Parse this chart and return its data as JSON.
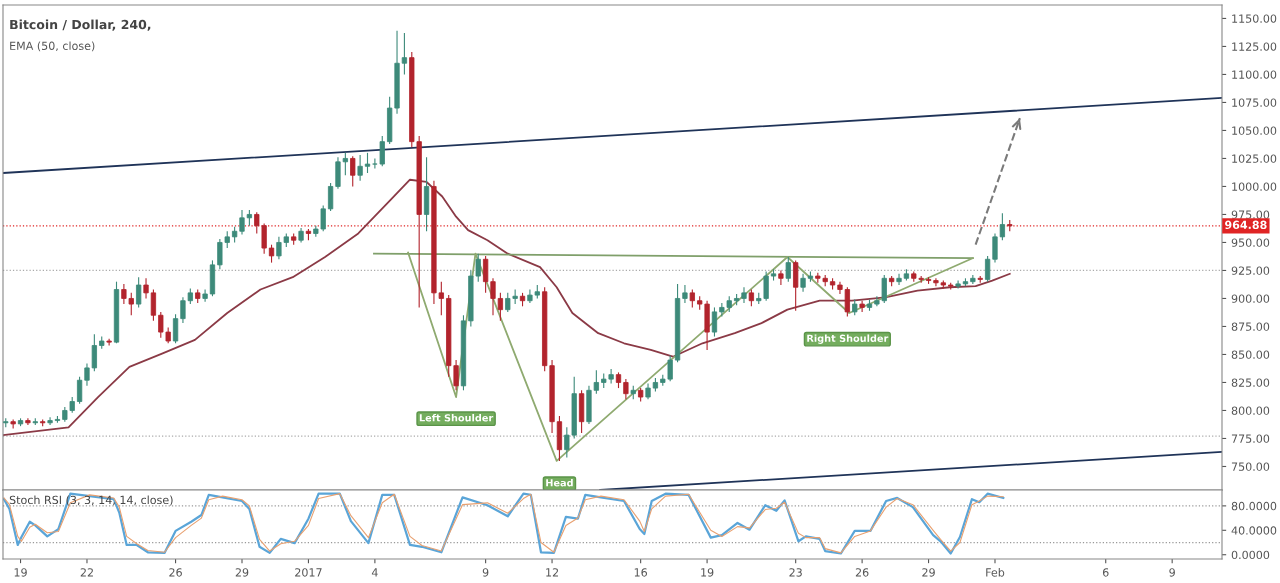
{
  "chart_data": [
    {
      "type": "candlestick",
      "title": "Bitcoin / Dollar, 240,",
      "subtitle": "EMA (50, close)",
      "x": [
        "2016-12-18T08:00",
        "2016-12-18T16:00",
        "2016-12-19T00:00",
        "2016-12-19T08:00",
        "2016-12-19T16:00",
        "2016-12-20T00:00",
        "2016-12-20T08:00",
        "2016-12-20T16:00",
        "2016-12-21T00:00",
        "2016-12-21T08:00",
        "2016-12-21T16:00",
        "2016-12-22T00:00",
        "2016-12-22T08:00",
        "2016-12-22T16:00",
        "2016-12-23T00:00",
        "2016-12-23T08:00",
        "2016-12-23T16:00",
        "2016-12-24T00:00",
        "2016-12-24T08:00",
        "2016-12-24T16:00",
        "2016-12-25T00:00",
        "2016-12-25T08:00",
        "2016-12-25T16:00",
        "2016-12-26T00:00",
        "2016-12-26T08:00",
        "2016-12-26T16:00",
        "2016-12-27T00:00",
        "2016-12-27T08:00",
        "2016-12-27T16:00",
        "2016-12-28T00:00",
        "2016-12-28T08:00",
        "2016-12-28T16:00",
        "2016-12-29T00:00",
        "2016-12-29T08:00",
        "2016-12-29T16:00",
        "2016-12-30T00:00",
        "2016-12-30T08:00",
        "2016-12-30T16:00",
        "2016-12-31T00:00",
        "2016-12-31T08:00",
        "2016-12-31T16:00",
        "2017-01-01T00:00",
        "2017-01-01T08:00",
        "2017-01-01T16:00",
        "2017-01-02T00:00",
        "2017-01-02T08:00",
        "2017-01-02T16:00",
        "2017-01-03T00:00",
        "2017-01-03T08:00",
        "2017-01-03T16:00",
        "2017-01-04T00:00",
        "2017-01-04T08:00",
        "2017-01-04T16:00",
        "2017-01-05T00:00",
        "2017-01-05T08:00",
        "2017-01-05T16:00",
        "2017-01-06T00:00",
        "2017-01-06T08:00",
        "2017-01-06T16:00",
        "2017-01-07T00:00",
        "2017-01-07T08:00",
        "2017-01-07T16:00",
        "2017-01-08T00:00",
        "2017-01-08T08:00",
        "2017-01-08T16:00",
        "2017-01-09T00:00",
        "2017-01-09T08:00",
        "2017-01-09T16:00",
        "2017-01-10T00:00",
        "2017-01-10T08:00",
        "2017-01-10T16:00",
        "2017-01-11T00:00",
        "2017-01-11T08:00",
        "2017-01-11T16:00",
        "2017-01-12T00:00",
        "2017-01-12T08:00",
        "2017-01-12T16:00",
        "2017-01-13T00:00",
        "2017-01-13T08:00",
        "2017-01-13T16:00",
        "2017-01-14T00:00",
        "2017-01-14T08:00",
        "2017-01-14T16:00",
        "2017-01-15T00:00",
        "2017-01-15T08:00",
        "2017-01-15T16:00",
        "2017-01-16T00:00",
        "2017-01-16T08:00",
        "2017-01-16T16:00",
        "2017-01-17T00:00",
        "2017-01-17T08:00",
        "2017-01-17T16:00",
        "2017-01-18T00:00",
        "2017-01-18T08:00",
        "2017-01-18T16:00",
        "2017-01-19T00:00",
        "2017-01-19T08:00",
        "2017-01-19T16:00",
        "2017-01-20T00:00",
        "2017-01-20T08:00",
        "2017-01-20T16:00",
        "2017-01-21T00:00",
        "2017-01-21T08:00",
        "2017-01-21T16:00",
        "2017-01-22T00:00",
        "2017-01-22T08:00",
        "2017-01-22T16:00",
        "2017-01-23T00:00",
        "2017-01-23T08:00",
        "2017-01-23T16:00",
        "2017-01-24T00:00",
        "2017-01-24T08:00",
        "2017-01-24T16:00",
        "2017-01-25T00:00",
        "2017-01-25T08:00",
        "2017-01-25T16:00",
        "2017-01-26T00:00",
        "2017-01-26T08:00",
        "2017-01-26T16:00",
        "2017-01-27T00:00",
        "2017-01-27T08:00",
        "2017-01-27T16:00",
        "2017-01-28T00:00",
        "2017-01-28T08:00",
        "2017-01-28T16:00",
        "2017-01-29T00:00",
        "2017-01-29T08:00",
        "2017-01-29T16:00",
        "2017-01-30T00:00",
        "2017-01-30T08:00",
        "2017-01-30T16:00",
        "2017-01-31T00:00",
        "2017-01-31T08:00",
        "2017-01-31T16:00",
        "2017-02-01T00:00",
        "2017-02-01T08:00",
        "2017-02-01T16:00"
      ],
      "ohlc": [
        [
          789,
          793,
          785,
          790
        ],
        [
          790,
          792,
          784,
          788
        ],
        [
          788,
          793,
          786,
          791
        ],
        [
          791,
          793,
          787,
          789
        ],
        [
          789,
          793,
          787,
          790
        ],
        [
          790,
          792,
          786,
          789
        ],
        [
          789,
          794,
          787,
          791
        ],
        [
          791,
          795,
          789,
          792
        ],
        [
          792,
          803,
          790,
          800
        ],
        [
          800,
          812,
          798,
          808
        ],
        [
          808,
          830,
          806,
          827
        ],
        [
          827,
          842,
          822,
          838
        ],
        [
          838,
          868,
          835,
          858
        ],
        [
          858,
          866,
          855,
          862
        ],
        [
          862,
          864,
          858,
          861
        ],
        [
          861,
          915,
          860,
          908
        ],
        [
          908,
          913,
          895,
          900
        ],
        [
          900,
          905,
          885,
          895
        ],
        [
          895,
          919,
          892,
          912
        ],
        [
          912,
          918,
          900,
          905
        ],
        [
          905,
          908,
          880,
          885
        ],
        [
          885,
          888,
          865,
          870
        ],
        [
          870,
          874,
          860,
          862
        ],
        [
          862,
          886,
          860,
          882
        ],
        [
          882,
          901,
          878,
          898
        ],
        [
          898,
          909,
          895,
          905
        ],
        [
          905,
          908,
          896,
          900
        ],
        [
          900,
          908,
          897,
          904
        ],
        [
          904,
          934,
          902,
          930
        ],
        [
          930,
          953,
          926,
          950
        ],
        [
          950,
          960,
          945,
          955
        ],
        [
          955,
          964,
          950,
          960
        ],
        [
          960,
          979,
          957,
          972
        ],
        [
          972,
          979,
          965,
          975
        ],
        [
          975,
          977,
          958,
          965
        ],
        [
          965,
          967,
          940,
          945
        ],
        [
          945,
          948,
          932,
          938
        ],
        [
          938,
          955,
          935,
          950
        ],
        [
          950,
          958,
          946,
          955
        ],
        [
          955,
          958,
          948,
          952
        ],
        [
          952,
          963,
          950,
          960
        ],
        [
          960,
          962,
          952,
          958
        ],
        [
          958,
          965,
          955,
          962
        ],
        [
          962,
          983,
          960,
          980
        ],
        [
          980,
          1003,
          978,
          1000
        ],
        [
          1000,
          1026,
          998,
          1022
        ],
        [
          1022,
          1030,
          1010,
          1025
        ],
        [
          1025,
          1027,
          1000,
          1010
        ],
        [
          1010,
          1028,
          1005,
          1018
        ],
        [
          1018,
          1030,
          1012,
          1020
        ],
        [
          1020,
          1025,
          1016,
          1020
        ],
        [
          1020,
          1045,
          1018,
          1040
        ],
        [
          1040,
          1080,
          1038,
          1070
        ],
        [
          1070,
          1139,
          1065,
          1110
        ],
        [
          1110,
          1137,
          1100,
          1115
        ],
        [
          1115,
          1120,
          1035,
          1040
        ],
        [
          1040,
          1045,
          892,
          975
        ],
        [
          975,
          1026,
          960,
          1000
        ],
        [
          1000,
          1005,
          895,
          905
        ],
        [
          905,
          915,
          885,
          900
        ],
        [
          900,
          903,
          830,
          840
        ],
        [
          840,
          845,
          818,
          822
        ],
        [
          822,
          885,
          818,
          880
        ],
        [
          880,
          925,
          875,
          920
        ],
        [
          920,
          940,
          915,
          935
        ],
        [
          935,
          938,
          905,
          915
        ],
        [
          915,
          918,
          885,
          900
        ],
        [
          900,
          905,
          880,
          890
        ],
        [
          890,
          905,
          888,
          900
        ],
        [
          900,
          908,
          895,
          902
        ],
        [
          902,
          905,
          893,
          898
        ],
        [
          898,
          908,
          896,
          903
        ],
        [
          903,
          912,
          900,
          906
        ],
        [
          906,
          910,
          835,
          840
        ],
        [
          840,
          845,
          780,
          790
        ],
        [
          790,
          795,
          755,
          765
        ],
        [
          765,
          785,
          758,
          778
        ],
        [
          778,
          830,
          775,
          815
        ],
        [
          815,
          818,
          780,
          790
        ],
        [
          790,
          822,
          788,
          818
        ],
        [
          818,
          836,
          815,
          825
        ],
        [
          825,
          833,
          820,
          828
        ],
        [
          828,
          837,
          824,
          832
        ],
        [
          832,
          834,
          820,
          825
        ],
        [
          825,
          828,
          810,
          815
        ],
        [
          815,
          822,
          810,
          818
        ],
        [
          818,
          820,
          808,
          812
        ],
        [
          812,
          824,
          810,
          820
        ],
        [
          820,
          829,
          817,
          825
        ],
        [
          825,
          832,
          822,
          828
        ],
        [
          828,
          849,
          826,
          845
        ],
        [
          845,
          913,
          843,
          900
        ],
        [
          900,
          912,
          896,
          905
        ],
        [
          905,
          908,
          892,
          898
        ],
        [
          898,
          902,
          890,
          895
        ],
        [
          895,
          898,
          854,
          870
        ],
        [
          870,
          892,
          866,
          888
        ],
        [
          888,
          896,
          884,
          892
        ],
        [
          892,
          902,
          888,
          898
        ],
        [
          898,
          904,
          894,
          900
        ],
        [
          900,
          910,
          896,
          905
        ],
        [
          905,
          908,
          893,
          898
        ],
        [
          898,
          905,
          895,
          900
        ],
        [
          900,
          924,
          898,
          920
        ],
        [
          920,
          926,
          916,
          922
        ],
        [
          922,
          925,
          912,
          918
        ],
        [
          918,
          937,
          915,
          932
        ],
        [
          932,
          934,
          889,
          910
        ],
        [
          910,
          922,
          906,
          918
        ],
        [
          918,
          924,
          915,
          920
        ],
        [
          920,
          923,
          914,
          918
        ],
        [
          918,
          921,
          911,
          915
        ],
        [
          915,
          918,
          908,
          912
        ],
        [
          912,
          915,
          904,
          908
        ],
        [
          908,
          910,
          884,
          888
        ],
        [
          888,
          899,
          885,
          895
        ],
        [
          895,
          898,
          888,
          892
        ],
        [
          892,
          899,
          889,
          895
        ],
        [
          895,
          902,
          893,
          898
        ],
        [
          898,
          921,
          896,
          918
        ],
        [
          918,
          920,
          911,
          915
        ],
        [
          915,
          922,
          912,
          918
        ],
        [
          918,
          926,
          916,
          922
        ],
        [
          922,
          924,
          915,
          918
        ],
        [
          918,
          920,
          914,
          917
        ],
        [
          917,
          919,
          913,
          916
        ],
        [
          916,
          918,
          911,
          914
        ],
        [
          914,
          916,
          909,
          912
        ],
        [
          912,
          914,
          908,
          911
        ],
        [
          911,
          916,
          909,
          913
        ],
        [
          913,
          918,
          911,
          915
        ],
        [
          915,
          921,
          913,
          918
        ],
        [
          918,
          920,
          914,
          917
        ],
        [
          917,
          938,
          915,
          935
        ],
        [
          935,
          958,
          932,
          955
        ],
        [
          955,
          976,
          952,
          966
        ],
        [
          966,
          970,
          960,
          964.88
        ]
      ],
      "colors": [
        "#3d8a7a",
        "#b2242d",
        "#3d8a7a",
        "#b2242d",
        "#3d8a7a",
        "#b2242d",
        "#3d8a7a",
        "#3d8a7a",
        "#3d8a7a",
        "#3d8a7a",
        "#3d8a7a",
        "#3d8a7a",
        "#3d8a7a",
        "#3d8a7a",
        "#b2242d",
        "#3d8a7a",
        "#b2242d",
        "#b2242d",
        "#3d8a7a",
        "#b2242d",
        "#b2242d",
        "#b2242d",
        "#b2242d",
        "#3d8a7a",
        "#3d8a7a",
        "#3d8a7a",
        "#b2242d",
        "#3d8a7a",
        "#3d8a7a",
        "#3d8a7a",
        "#3d8a7a",
        "#3d8a7a",
        "#3d8a7a",
        "#3d8a7a",
        "#b2242d",
        "#b2242d",
        "#b2242d",
        "#3d8a7a",
        "#3d8a7a",
        "#b2242d",
        "#3d8a7a",
        "#b2242d",
        "#3d8a7a",
        "#3d8a7a",
        "#3d8a7a",
        "#3d8a7a",
        "#3d8a7a",
        "#b2242d",
        "#3d8a7a",
        "#3d8a7a",
        "#3d8a7a",
        "#3d8a7a",
        "#3d8a7a",
        "#3d8a7a",
        "#3d8a7a",
        "#b2242d",
        "#b2242d",
        "#3d8a7a",
        "#b2242d",
        "#b2242d",
        "#b2242d",
        "#b2242d",
        "#3d8a7a",
        "#3d8a7a",
        "#3d8a7a",
        "#b2242d",
        "#b2242d",
        "#b2242d",
        "#3d8a7a",
        "#3d8a7a",
        "#b2242d",
        "#3d8a7a",
        "#3d8a7a",
        "#b2242d",
        "#b2242d",
        "#b2242d",
        "#3d8a7a",
        "#3d8a7a",
        "#b2242d",
        "#3d8a7a",
        "#3d8a7a",
        "#3d8a7a",
        "#3d8a7a",
        "#b2242d",
        "#b2242d",
        "#3d8a7a",
        "#b2242d",
        "#3d8a7a",
        "#3d8a7a",
        "#3d8a7a",
        "#3d8a7a",
        "#3d8a7a",
        "#3d8a7a",
        "#b2242d",
        "#b2242d",
        "#b2242d",
        "#3d8a7a",
        "#3d8a7a",
        "#3d8a7a",
        "#3d8a7a",
        "#3d8a7a",
        "#b2242d",
        "#3d8a7a",
        "#3d8a7a",
        "#3d8a7a",
        "#b2242d",
        "#3d8a7a",
        "#b2242d",
        "#3d8a7a",
        "#3d8a7a",
        "#b2242d",
        "#b2242d",
        "#b2242d",
        "#b2242d",
        "#b2242d",
        "#3d8a7a",
        "#b2242d",
        "#3d8a7a",
        "#3d8a7a",
        "#3d8a7a",
        "#b2242d",
        "#3d8a7a",
        "#3d8a7a",
        "#b2242d",
        "#b2242d",
        "#b2242d",
        "#b2242d",
        "#b2242d",
        "#b2242d",
        "#3d8a7a",
        "#3d8a7a",
        "#3d8a7a",
        "#b2242d",
        "#3d8a7a",
        "#3d8a7a",
        "#3d8a7a",
        "#b2242d"
      ],
      "series": [
        {
          "type": "line",
          "color": "#8b3a46",
          "x": [
            "2016-12-18T05:00",
            "2016-12-21T04:00",
            "2016-12-22T12:00",
            "2016-12-23T22:00",
            "2016-12-25T10:00",
            "2016-12-26T21:00",
            "2016-12-28T08:00",
            "2016-12-29T20:00",
            "2016-12-31T07:00",
            "2017-01-01T18:00",
            "2017-01-03T06:00",
            "2017-01-04T17:00",
            "2017-01-05T14:00",
            "2017-01-06T08:00",
            "2017-01-07T01:00",
            "2017-01-07T16:00",
            "2017-01-08T05:00",
            "2017-01-09T02:00",
            "2017-01-10T00:00",
            "2017-01-11T11:00",
            "2017-01-12T05:00",
            "2017-01-12T22:00",
            "2017-01-14T02:00",
            "2017-01-15T06:00",
            "2017-01-16T11:00",
            "2017-01-17T11:00",
            "2017-01-18T19:00",
            "2017-01-20T06:00",
            "2017-01-21T11:00",
            "2017-01-22T15:00",
            "2017-01-24T02:00",
            "2017-01-25T13:00",
            "2017-01-27T01:00",
            "2017-01-28T12:00",
            "2017-01-29T23:00",
            "2017-01-31T03:00",
            "2017-01-31T21:00",
            "2017-02-01T16:00"
          ],
          "values": [
            778,
            785,
            812,
            839,
            851,
            863,
            887,
            908,
            919,
            937,
            958,
            988,
            1006,
            1004,
            991,
            973,
            961,
            952,
            940,
            928,
            910,
            887,
            869,
            860,
            854,
            848,
            860,
            869,
            878,
            890,
            898,
            898,
            901,
            907,
            910,
            911,
            916,
            922
          ]
        },
        {
          "type": "line",
          "color": "#1f3358",
          "x": [
            "2016-12-18T05:00",
            "2017-02-11T06:00"
          ],
          "values": [
            1012,
            1079
          ]
        },
        {
          "type": "line",
          "color": "#1f3358",
          "x": [
            "2017-01-14T04:00",
            "2017-02-11T06:00"
          ],
          "values": [
            729,
            763
          ]
        },
        {
          "type": "line",
          "color": "#7f9f6a",
          "x": [
            "2017-01-03T23:00",
            "2017-01-31T00:00"
          ],
          "values": [
            940,
            936
          ]
        },
        {
          "type": "line",
          "color": "#8faa70",
          "x": [
            "2017-01-05T12:00",
            "2017-01-07T16:00",
            "2017-01-08T13:00",
            "2017-01-12T05:00",
            "2017-01-22T15:00",
            "2017-01-25T10:00",
            "2017-01-31T00:00"
          ],
          "values": [
            941,
            812,
            940,
            755,
            937,
            887,
            936
          ]
        },
        {
          "type": "line",
          "color": "#7a7a7a",
          "line_style": "dashed",
          "x": [
            "2017-01-31T03:00",
            "2017-02-02T03:00"
          ],
          "values": [
            948,
            1061
          ]
        }
      ],
      "ref_lines": [
        {
          "axis": "y",
          "value": 964.88,
          "label": "964.88",
          "color": "#e02424",
          "line_style": "dotted"
        },
        {
          "axis": "y",
          "value": 925,
          "color": "#aaaaaa",
          "line_style": "dotted"
        },
        {
          "axis": "y",
          "value": 777,
          "color": "#aaaaaa",
          "line_style": "dotted"
        }
      ],
      "annotations": [
        {
          "text": "Left Shoulder",
          "x": "2017-01-07T16:00",
          "y": 813
        },
        {
          "text": "Head",
          "x": "2017-01-12T08:00",
          "y": 755
        },
        {
          "text": "Right Shoulder",
          "x": "2017-01-25T08:00",
          "y": 884
        }
      ],
      "xlim": [
        "2016-12-18T05:00",
        "2017-02-11T06:00"
      ],
      "ylim": [
        729,
        1162
      ],
      "yticks": [
        {
          "value": 750,
          "label": "750.00"
        },
        {
          "value": 775,
          "label": "775.00"
        },
        {
          "value": 800,
          "label": "800.00"
        },
        {
          "value": 825,
          "label": "825.00"
        },
        {
          "value": 850,
          "label": "850.00"
        },
        {
          "value": 875,
          "label": "875.00"
        },
        {
          "value": 900,
          "label": "900.00"
        },
        {
          "value": 925,
          "label": "925.00"
        },
        {
          "value": 950,
          "label": "950.00"
        },
        {
          "value": 975,
          "label": "975.00"
        },
        {
          "value": 1000,
          "label": "1000.00"
        },
        {
          "value": 1025,
          "label": "1025.00"
        },
        {
          "value": 1050,
          "label": "1050.00"
        },
        {
          "value": 1075,
          "label": "1075.00"
        },
        {
          "value": 1100,
          "label": "1100.00"
        },
        {
          "value": 1125,
          "label": "1125.00"
        },
        {
          "value": 1150,
          "label": "1150.00"
        }
      ],
      "tick_labels": "y"
    },
    {
      "type": "line",
      "title": "Stoch RSI (3, 3, 14, 14, close)",
      "series": [
        {
          "color": "#5aa5d8",
          "x": [
            "2016-12-18T06:00",
            "2016-12-18T12:00",
            "2016-12-18T21:00",
            "2016-12-19T01:00",
            "2016-12-19T10:00",
            "2016-12-19T16:00",
            "2016-12-20T05:00",
            "2016-12-20T17:00",
            "2016-12-21T06:00",
            "2016-12-22T03:00",
            "2016-12-23T05:00",
            "2016-12-23T11:00",
            "2016-12-23T19:00",
            "2016-12-24T06:00",
            "2016-12-24T18:00",
            "2016-12-25T12:00",
            "2016-12-26T00:00",
            "2016-12-26T17:00",
            "2016-12-27T04:00",
            "2016-12-27T12:00",
            "2016-12-28T03:00",
            "2016-12-29T00:00",
            "2016-12-29T08:00",
            "2016-12-29T19:00",
            "2016-12-30T06:00",
            "2016-12-30T18:00",
            "2016-12-31T09:00",
            "2017-01-01T00:00",
            "2017-01-01T11:00",
            "2017-01-02T10:00",
            "2017-01-02T22:00",
            "2017-01-03T17:00",
            "2017-01-04T08:00",
            "2017-01-04T21:00",
            "2017-01-05T14:00",
            "2017-01-06T03:00",
            "2017-01-07T00:00",
            "2017-01-07T23:00",
            "2017-01-09T02:00",
            "2017-01-10T00:00",
            "2017-01-10T17:00",
            "2017-01-11T01:00",
            "2017-01-11T12:00",
            "2017-01-12T02:00",
            "2017-01-12T15:00",
            "2017-01-13T04:00",
            "2017-01-13T12:00",
            "2017-01-14T05:00",
            "2017-01-15T06:00",
            "2017-01-15T23:00",
            "2017-01-16T04:00",
            "2017-01-16T12:00",
            "2017-01-17T03:00",
            "2017-01-18T04:00",
            "2017-01-19T04:00",
            "2017-01-19T16:00",
            "2017-01-20T09:00",
            "2017-01-20T22:00",
            "2017-01-21T15:00",
            "2017-01-22T03:00",
            "2017-01-22T12:00",
            "2017-01-23T03:00",
            "2017-01-23T11:00",
            "2017-01-24T02:00",
            "2017-01-24T08:00",
            "2017-01-25T01:00",
            "2017-01-25T16:00",
            "2017-01-26T09:00",
            "2017-01-27T02:00",
            "2017-01-27T14:00",
            "2017-01-28T07:00",
            "2017-01-29T05:00",
            "2017-01-29T13:00",
            "2017-01-30T00:00",
            "2017-01-30T10:00",
            "2017-01-30T23:00",
            "2017-01-31T07:00",
            "2017-01-31T16:00",
            "2017-02-01T09:00"
          ],
          "values": [
            91,
            75,
            16,
            29,
            54,
            48,
            30,
            42,
            100,
            96,
            91,
            69,
            16,
            16,
            4,
            3,
            39,
            54,
            65,
            98,
            94,
            88,
            75,
            13,
            3,
            26,
            19,
            59,
            100,
            100,
            55,
            19,
            98,
            98,
            16,
            13,
            4,
            94,
            81,
            63,
            100,
            98,
            4,
            3,
            62,
            59,
            98,
            94,
            88,
            42,
            34,
            88,
            100,
            98,
            28,
            32,
            52,
            41,
            81,
            72,
            89,
            22,
            30,
            26,
            6,
            2,
            39,
            39,
            88,
            93,
            78,
            32,
            22,
            2,
            29,
            91,
            86,
            100,
            93
          ]
        },
        {
          "color": "#e8a070",
          "x": [
            "2016-12-18T06:00",
            "2016-12-18T12:00",
            "2016-12-18T21:00",
            "2016-12-19T01:00",
            "2016-12-19T10:00",
            "2016-12-19T16:00",
            "2016-12-20T05:00",
            "2016-12-20T17:00",
            "2016-12-21T06:00",
            "2016-12-22T03:00",
            "2016-12-23T05:00",
            "2016-12-23T11:00",
            "2016-12-23T19:00",
            "2016-12-24T06:00",
            "2016-12-24T18:00",
            "2016-12-25T12:00",
            "2016-12-26T00:00",
            "2016-12-26T17:00",
            "2016-12-27T04:00",
            "2016-12-27T12:00",
            "2016-12-28T03:00",
            "2016-12-29T00:00",
            "2016-12-29T08:00",
            "2016-12-29T19:00",
            "2016-12-30T06:00",
            "2016-12-30T18:00",
            "2016-12-31T09:00",
            "2017-01-01T00:00",
            "2017-01-01T11:00",
            "2017-01-02T10:00",
            "2017-01-02T22:00",
            "2017-01-03T17:00",
            "2017-01-04T08:00",
            "2017-01-04T21:00",
            "2017-01-05T14:00",
            "2017-01-06T03:00",
            "2017-01-07T00:00",
            "2017-01-07T23:00",
            "2017-01-09T02:00",
            "2017-01-10T00:00",
            "2017-01-10T17:00",
            "2017-01-11T01:00",
            "2017-01-11T12:00",
            "2017-01-12T02:00",
            "2017-01-12T15:00",
            "2017-01-13T04:00",
            "2017-01-13T12:00",
            "2017-01-14T05:00",
            "2017-01-15T06:00",
            "2017-01-15T23:00",
            "2017-01-16T04:00",
            "2017-01-16T12:00",
            "2017-01-17T03:00",
            "2017-01-18T04:00",
            "2017-01-19T04:00",
            "2017-01-19T16:00",
            "2017-01-20T09:00",
            "2017-01-20T22:00",
            "2017-01-21T15:00",
            "2017-01-22T03:00",
            "2017-01-22T12:00",
            "2017-01-23T03:00",
            "2017-01-23T11:00",
            "2017-01-24T02:00",
            "2017-01-24T08:00",
            "2017-01-25T01:00",
            "2017-01-25T16:00",
            "2017-01-26T09:00",
            "2017-01-27T02:00",
            "2017-01-27T14:00",
            "2017-01-28T07:00",
            "2017-01-29T05:00",
            "2017-01-29T13:00",
            "2017-01-30T00:00",
            "2017-01-30T10:00",
            "2017-01-30T23:00",
            "2017-01-31T07:00",
            "2017-01-31T16:00",
            "2017-02-01T09:00"
          ],
          "values": [
            93,
            82,
            30,
            22,
            45,
            50,
            36,
            38,
            85,
            98,
            93,
            78,
            30,
            18,
            7,
            4,
            28,
            48,
            60,
            90,
            96,
            90,
            80,
            25,
            6,
            18,
            22,
            48,
            92,
            100,
            64,
            28,
            85,
            99,
            30,
            15,
            6,
            82,
            85,
            68,
            92,
            99,
            20,
            4,
            48,
            60,
            90,
            96,
            90,
            55,
            38,
            75,
            96,
            99,
            40,
            30,
            46,
            44,
            74,
            76,
            86,
            35,
            28,
            28,
            10,
            3,
            30,
            39,
            78,
            92,
            82,
            40,
            25,
            6,
            20,
            82,
            88,
            96,
            95
          ]
        }
      ],
      "ref_lines": [
        {
          "axis": "y",
          "value": 80,
          "color": "#999999",
          "line_style": "dotted"
        },
        {
          "axis": "y",
          "value": 20,
          "color": "#999999",
          "line_style": "dotted"
        }
      ],
      "xlim": [
        "2016-12-18T05:00",
        "2017-02-11T06:00"
      ],
      "xticks": [
        {
          "value": "2016-12-19",
          "label": "19"
        },
        {
          "value": "2016-12-22",
          "label": "22"
        },
        {
          "value": "2016-12-26",
          "label": "26"
        },
        {
          "value": "2016-12-29",
          "label": "29"
        },
        {
          "value": "2017-01-01",
          "label": "2017"
        },
        {
          "value": "2017-01-04",
          "label": "4"
        },
        {
          "value": "2017-01-09",
          "label": "9"
        },
        {
          "value": "2017-01-12",
          "label": "12"
        },
        {
          "value": "2017-01-16",
          "label": "16"
        },
        {
          "value": "2017-01-19",
          "label": "19"
        },
        {
          "value": "2017-01-23",
          "label": "23"
        },
        {
          "value": "2017-01-26",
          "label": "26"
        },
        {
          "value": "2017-01-29",
          "label": "29"
        },
        {
          "value": "2017-02-01",
          "label": "Feb"
        },
        {
          "value": "2017-02-06",
          "label": "6"
        },
        {
          "value": "2017-02-09",
          "label": "9"
        }
      ],
      "ylim": [
        -7,
        106
      ],
      "yticks": [
        {
          "value": 0,
          "label": "0.0000"
        },
        {
          "value": 40,
          "label": "40.0000"
        },
        {
          "value": 80,
          "label": "80.0000"
        }
      ]
    }
  ]
}
